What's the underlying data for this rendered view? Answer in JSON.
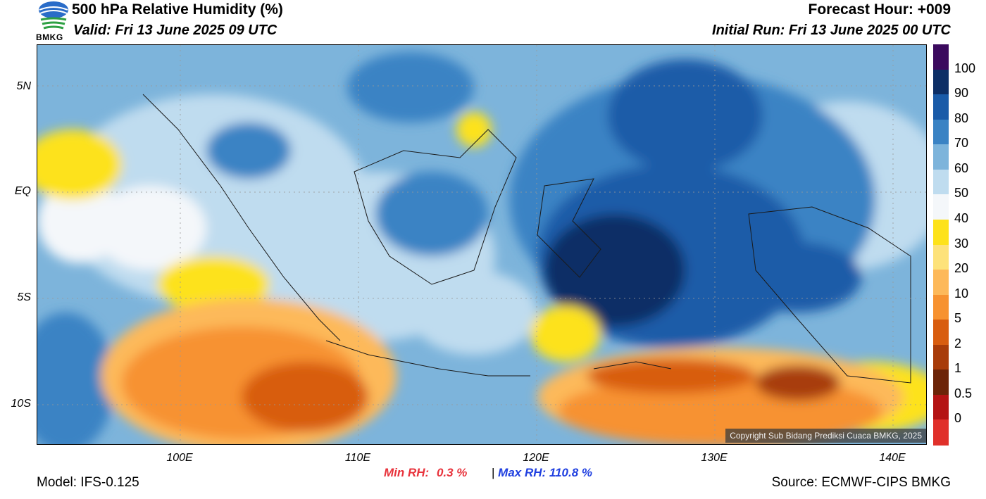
{
  "header": {
    "title": "500 hPa Relative Humidity (%)",
    "valid": "Valid: Fri 13 June 2025 09 UTC",
    "forecast_hour": "Forecast Hour: +009",
    "initial_run": "Initial Run: Fri 13 June 2025 00 UTC",
    "logo_text": "BMKG"
  },
  "axes": {
    "lat_labels": [
      "5N",
      "EQ",
      "5S",
      "10S"
    ],
    "lon_labels": [
      "100E",
      "110E",
      "120E",
      "130E",
      "140E"
    ]
  },
  "stats": {
    "min_label": "Min RH:",
    "min_value": "0.3 %",
    "separator": "|",
    "max_label": "Max RH:",
    "max_value": "110.8 %"
  },
  "footer": {
    "model": "Model: IFS-0.125",
    "source": "Source: ECMWF-CIPS BMKG",
    "copyright": "Copyright Sub Bidang Prediksi Cuaca BMKG, 2025"
  },
  "colorbar": {
    "labels": [
      "100",
      "90",
      "80",
      "70",
      "60",
      "50",
      "40",
      "30",
      "20",
      "10",
      "5",
      "2",
      "1",
      "0.5",
      "0"
    ],
    "colors": [
      "#3b0a5e",
      "#0d2f66",
      "#1a5ba8",
      "#3a83c4",
      "#7db4db",
      "#bfdcef",
      "#f4f7fa",
      "#fde21a",
      "#fde27a",
      "#fdb95a",
      "#f79230",
      "#d85d10",
      "#a83c0a",
      "#6c2408",
      "#b41414",
      "#e0302a"
    ]
  },
  "colors": {
    "min_color": "#e8333c",
    "max_color": "#2040e0"
  }
}
